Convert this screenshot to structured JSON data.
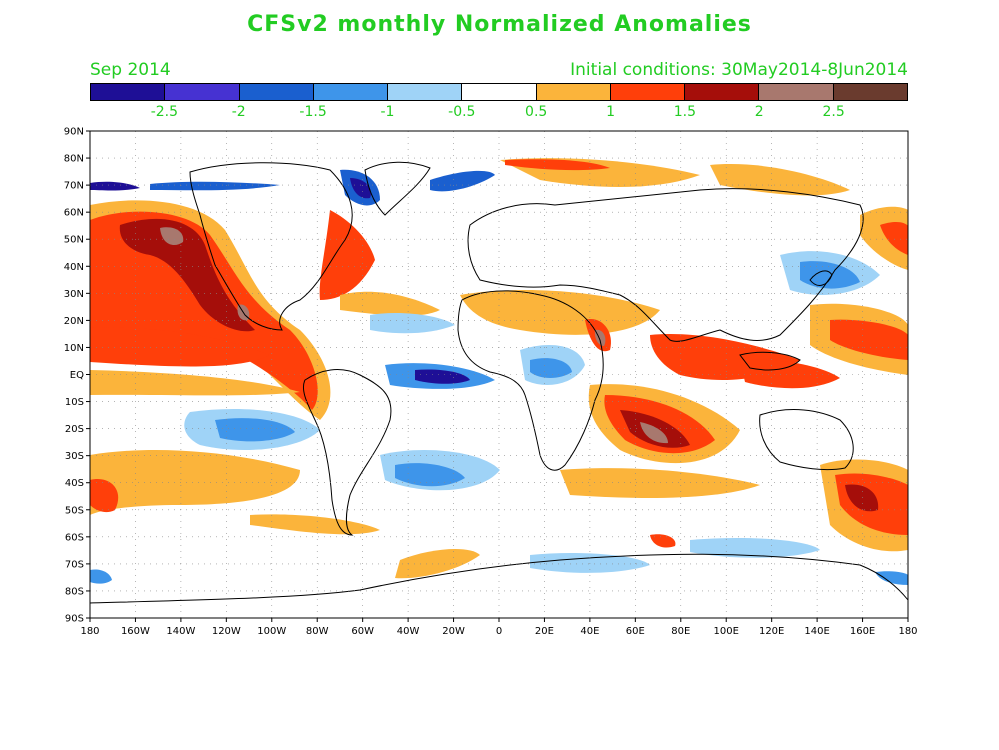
{
  "title": "CFSv2 monthly Normalized Anomalies",
  "subtitle_left": "Sep 2014",
  "subtitle_right": "Initial conditions: 30May2014-8Jun2014",
  "colorbar": {
    "colors": [
      "#1e0f96",
      "#4632d2",
      "#1a5fcf",
      "#3e95ea",
      "#9fd3f7",
      "#ffffff",
      "#fbb43b",
      "#ff3f0a",
      "#a50e0a",
      "#a8786e",
      "#6a3b2e"
    ],
    "labels": [
      "-2.5",
      "-2",
      "-1.5",
      "-1",
      "-0.5",
      "0.5",
      "1",
      "1.5",
      "2",
      "2.5"
    ]
  },
  "map": {
    "lat_labels": [
      "90N",
      "80N",
      "70N",
      "60N",
      "50N",
      "40N",
      "30N",
      "20N",
      "10N",
      "EQ",
      "10S",
      "20S",
      "30S",
      "40S",
      "50S",
      "60S",
      "70S",
      "80S",
      "90S"
    ],
    "lon_labels": [
      "180",
      "160W",
      "140W",
      "120W",
      "100W",
      "80W",
      "60W",
      "40W",
      "20W",
      "0",
      "20E",
      "40E",
      "60E",
      "80E",
      "100E",
      "120E",
      "140E",
      "160E",
      "180"
    ]
  }
}
